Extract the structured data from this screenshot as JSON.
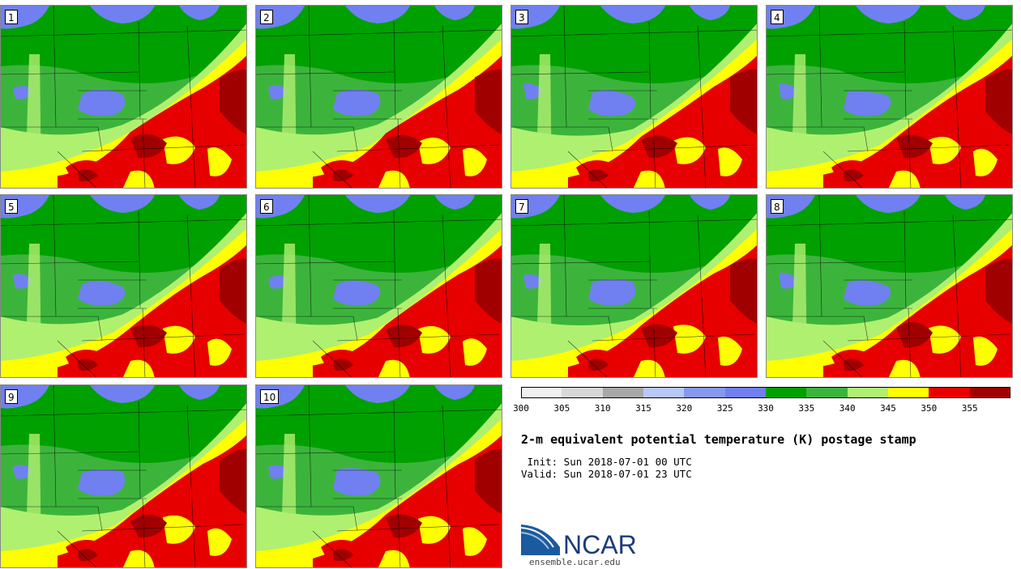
{
  "panels": [
    {
      "label": "1",
      "col": 0,
      "row": 0
    },
    {
      "label": "2",
      "col": 1,
      "row": 0
    },
    {
      "label": "3",
      "col": 2,
      "row": 0
    },
    {
      "label": "4",
      "col": 3,
      "row": 0
    },
    {
      "label": "5",
      "col": 0,
      "row": 1
    },
    {
      "label": "6",
      "col": 1,
      "row": 1
    },
    {
      "label": "7",
      "col": 2,
      "row": 1
    },
    {
      "label": "8",
      "col": 3,
      "row": 1
    },
    {
      "label": "9",
      "col": 0,
      "row": 2
    },
    {
      "label": "10",
      "col": 1,
      "row": 2
    }
  ],
  "colorbar": {
    "colors": [
      "#f0f0f0",
      "#d8d8d8",
      "#a8a8a8",
      "#b8c8f8",
      "#8898f0",
      "#7080f0",
      "#00a000",
      "#3cb43c",
      "#b0f070",
      "#ffff00",
      "#e60000",
      "#a00000"
    ],
    "ticks": [
      "300",
      "305",
      "310",
      "315",
      "320",
      "325",
      "330",
      "335",
      "340",
      "345",
      "350",
      "355"
    ]
  },
  "title": "2-m equivalent potential temperature (K) postage stamp",
  "init": " Init: Sun 2018-07-01 00 UTC",
  "valid": "Valid: Sun 2018-07-01 23 UTC",
  "logo": {
    "text": "NCAR",
    "url": "ensemble.ucar.edu"
  }
}
